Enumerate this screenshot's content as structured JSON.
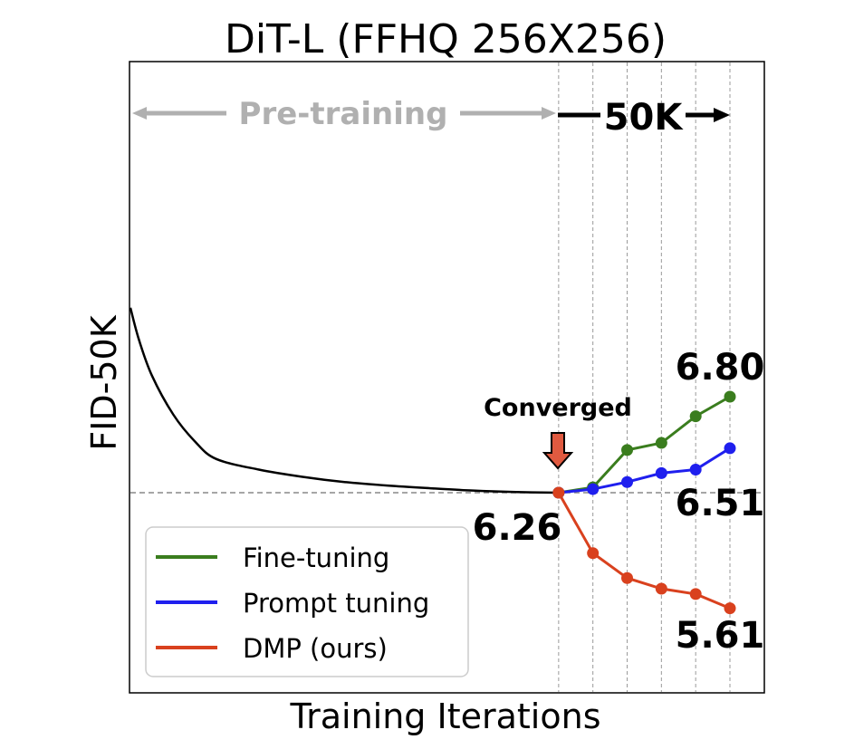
{
  "chart_data": {
    "type": "line",
    "title": "DiT-L (FFHQ 256X256)",
    "xlabel": "Training Iterations",
    "ylabel": "FID-50K",
    "x_ticks_visible": false,
    "y_ticks_visible": false,
    "grid": "vertical dashed lines at the fine-tuning checkpoints",
    "baseline": {
      "value": 6.26,
      "style": "dashed",
      "color": "#888888"
    },
    "pretraining": {
      "name": "Pre-training",
      "color": "#000000",
      "x": [
        0,
        2,
        5,
        10,
        15,
        20,
        30,
        40,
        50,
        60,
        70,
        80,
        90,
        100
      ],
      "y": [
        7.3,
        7.12,
        6.92,
        6.7,
        6.55,
        6.45,
        6.39,
        6.35,
        6.32,
        6.3,
        6.285,
        6.272,
        6.264,
        6.26
      ]
    },
    "phase_labels": {
      "pretraining": "Pre-training",
      "finetune_span": "50K",
      "converged": "Converged"
    },
    "series": [
      {
        "name": "Fine-tuning",
        "color": "#3a7d1e",
        "x": [
          100,
          108,
          116,
          124,
          132,
          140
        ],
        "y": [
          6.26,
          6.29,
          6.5,
          6.54,
          6.69,
          6.8
        ]
      },
      {
        "name": "Prompt tuning",
        "color": "#1f1fee",
        "x": [
          100,
          108,
          116,
          124,
          132,
          140
        ],
        "y": [
          6.26,
          6.28,
          6.32,
          6.37,
          6.39,
          6.51
        ]
      },
      {
        "name": "DMP (ours)",
        "color": "#d9411e",
        "x": [
          100,
          108,
          116,
          124,
          132,
          140
        ],
        "y": [
          6.26,
          5.92,
          5.78,
          5.72,
          5.69,
          5.61
        ]
      }
    ],
    "annotations": [
      "6.26",
      "6.80",
      "6.51",
      "5.61"
    ],
    "legend": {
      "placement": "lower-left",
      "entries": [
        "Fine-tuning",
        "Prompt tuning",
        "DMP (ours)"
      ]
    }
  }
}
